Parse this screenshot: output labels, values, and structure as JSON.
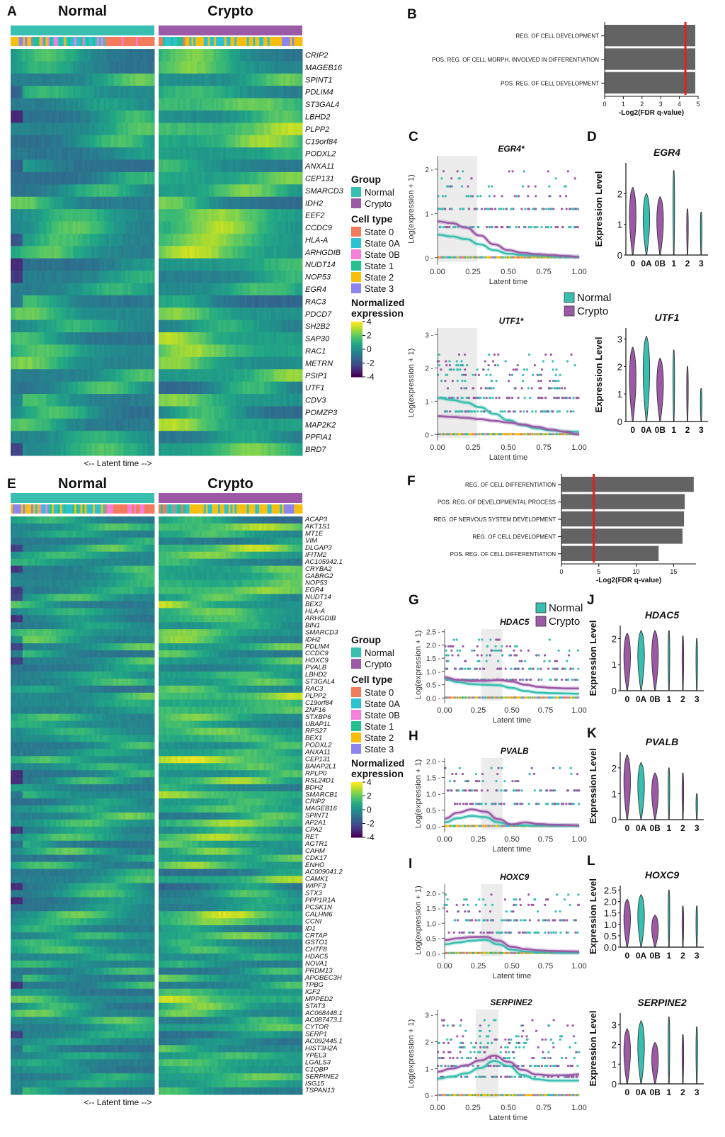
{
  "panels": {
    "A": {
      "letter": "A",
      "normal_label": "Normal",
      "crypto_label": "Crypto",
      "latent_label": "<-- Latent time -->",
      "genes": [
        "CRIP2",
        "MAGEB16",
        "SPINT1",
        "PDLIM4",
        "ST3GAL4",
        "LBHD2",
        "PLPP2",
        "C19orf84",
        "PODXL2",
        "ANXA11",
        "CEP131",
        "SMARCD3",
        "IDH2",
        "EEF2",
        "CCDC9",
        "HLA-A",
        "ARHGDIB",
        "NUDT14",
        "NOP53",
        "EGR4",
        "RAC3",
        "PDCD7",
        "SH2B2",
        "SAP30",
        "RAC1",
        "METRN",
        "PSIP1",
        "UTF1",
        "CDV3",
        "POMZP3",
        "MAP2K2",
        "PPFIA1",
        "BRD7"
      ]
    },
    "E": {
      "letter": "E",
      "normal_label": "Normal",
      "crypto_label": "Crypto",
      "latent_label": "<-- Latent time -->",
      "genes": [
        "ACAP3",
        "AKT1S1",
        "MT1E",
        "VIM",
        "DLGAP3",
        "IFITM2",
        "AC105942.1",
        "CRYBA2",
        "GABRG2",
        "NOP53",
        "EGR4",
        "NUDT14",
        "BEX2",
        "HLA-A",
        "ARHGDIB",
        "BIN1",
        "SMARCD3",
        "IDH2",
        "PDLIM4",
        "CCDC9",
        "HOXC9",
        "PVALB",
        "LBHD2",
        "ST3GAL4",
        "RAC3",
        "PLPP2",
        "C19orf84",
        "ZNF16",
        "STXBP6",
        "UBAP1L",
        "RPS27",
        "BEX1",
        "PODXL2",
        "ANXA11",
        "CEP131",
        "BAIAP2L1",
        "RPLP0",
        "RSL24D1",
        "BDH2",
        "SMARCB1",
        "CRIP2",
        "MAGEB16",
        "SPINT1",
        "AP2A1",
        "CPA2",
        "RET",
        "AGTR1",
        "CAHM",
        "CDK17",
        "ENHO",
        "AC009041.2",
        "CAMK1",
        "WIPF3",
        "STX3",
        "PPP1R1A",
        "PCSK1N",
        "CALHM6",
        "CCNI",
        "ID1",
        "CRTAP",
        "GSTO1",
        "CHTF8",
        "HDAC5",
        "NOVA1",
        "PRDM13",
        "APOBEC3H",
        "TPBG",
        "IGF2",
        "MPPED2",
        "STAT3",
        "AC068448.1",
        "AC087473.1",
        "CYTOR",
        "SERP1",
        "AC092445.1",
        "HIST3H2A",
        "YPEL3",
        "LGALS3",
        "C1QBP",
        "SERPINE2",
        "ISG15",
        "TSPAN13"
      ]
    },
    "B": {
      "letter": "B",
      "terms": [
        "REG. OF CELL DEVELOPMENT",
        "POS. REG. OF CELL MORPH. INVOLVED IN DIFFERENTIATION",
        "POS. REG. OF CELL DEVELOPMENT"
      ],
      "xlabel": "-Log2(FDR q-value)",
      "ticks": [
        "0",
        "1",
        "2",
        "3",
        "4",
        "5"
      ]
    },
    "F": {
      "letter": "F",
      "terms": [
        "REG. OF CELL DIFFERENTIATION",
        "POS. REG. OF DEVELOPMENTAL PROCESS",
        "REG. OF NERVOUS SYSTEM DEVELOPMENT",
        "REG. OF CELL DEVELOPMENT",
        "POS. REG. OF CELL DIFFERENTIATION"
      ],
      "xlabel": "-Log2(FDR q-value)",
      "ticks": [
        "0",
        "5",
        "10",
        "15"
      ]
    },
    "C": {
      "letter": "C"
    },
    "D": {
      "letter": "D"
    },
    "G": {
      "letter": "G"
    },
    "H": {
      "letter": "H"
    },
    "I": {
      "letter": "I"
    },
    "J": {
      "letter": "J"
    },
    "K": {
      "letter": "K"
    },
    "L": {
      "letter": "L"
    }
  },
  "legend": {
    "group_title": "Group",
    "group_items": [
      "Normal",
      "Crypto"
    ],
    "celltype_title": "Cell type",
    "celltype_items": [
      "State 0",
      "State 0A",
      "State 0B",
      "State 1",
      "State 2",
      "State 3"
    ],
    "expr_title_1": "Normalized",
    "expr_title_2": "expression",
    "expr_ticks": [
      "4",
      "2",
      "0",
      "-2",
      "-4"
    ]
  },
  "trend_legend": {
    "items": [
      "Normal",
      "Crypto"
    ]
  },
  "trend_axis": {
    "xlabel": "Latent time",
    "ylabel": "Log(expression + 1)",
    "xticks": [
      "0.00",
      "0.25",
      "0.50",
      "0.75",
      "1.00"
    ]
  },
  "violin_axis": {
    "ylabel": "Expression Level",
    "categories": [
      "0",
      "0A",
      "0B",
      "1",
      "2",
      "3"
    ]
  },
  "colors": {
    "normal": "#38bfb0",
    "crypto": "#9b59a6",
    "state0": "#f47a5d",
    "state0A": "#2ec1d1",
    "state0B": "#f47fd9",
    "state1": "#25c08f",
    "state2": "#f6bf10",
    "state3": "#8c84ef",
    "bar": "#636363",
    "threshold": "#e0211d"
  },
  "chart_data": [
    {
      "type": "bar",
      "panel": "B",
      "categories": [
        "REG. OF CELL DEVELOPMENT",
        "POS. REG. OF CELL MORPH. INVOLVED IN DIFFERENTIATION",
        "POS. REG. OF CELL DEVELOPMENT"
      ],
      "values": [
        4.85,
        4.85,
        4.85
      ],
      "threshold": 4.32,
      "xlim": [
        0,
        5
      ],
      "xlabel": "-Log2(FDR q-value)"
    },
    {
      "type": "bar",
      "panel": "F",
      "categories": [
        "REG. OF CELL DIFFERENTIATION",
        "POS. REG. OF DEVELOPMENTAL PROCESS",
        "REG. OF NERVOUS SYSTEM DEVELOPMENT",
        "REG. OF CELL DEVELOPMENT",
        "POS. REG. OF CELL DIFFERENTIATION"
      ],
      "values": [
        17.7,
        16.5,
        16.4,
        16.2,
        13.0
      ],
      "threshold": 4.32,
      "xlim": [
        0,
        18
      ],
      "xlabel": "-Log2(FDR q-value)"
    },
    {
      "type": "line",
      "panel": "C",
      "title": "EGR4*",
      "xlim": [
        0,
        1
      ],
      "ylim": [
        -0.1,
        2.3
      ],
      "yticks": [
        0,
        1,
        2
      ],
      "shade": [
        0.0,
        0.28
      ],
      "x": [
        0.0,
        0.1,
        0.2,
        0.3,
        0.4,
        0.5,
        0.6,
        0.7,
        0.8,
        0.9,
        1.0
      ],
      "series": [
        {
          "name": "Normal",
          "values": [
            0.52,
            0.48,
            0.42,
            0.3,
            0.17,
            0.09,
            0.06,
            0.05,
            0.04,
            0.03,
            0.02
          ]
        },
        {
          "name": "Crypto",
          "values": [
            0.82,
            0.78,
            0.68,
            0.5,
            0.3,
            0.17,
            0.11,
            0.08,
            0.06,
            0.04,
            0.02
          ]
        }
      ],
      "point_levels": [
        0,
        0.69,
        1.1,
        1.39,
        1.61,
        1.79,
        1.95
      ]
    },
    {
      "type": "line",
      "panel": "C2",
      "title": "UTF1*",
      "xlim": [
        0,
        1
      ],
      "ylim": [
        -0.1,
        3.2
      ],
      "yticks": [
        0,
        1,
        2,
        3
      ],
      "shade": [
        0.0,
        0.28
      ],
      "x": [
        0.0,
        0.1,
        0.2,
        0.3,
        0.4,
        0.5,
        0.6,
        0.7,
        0.8,
        0.9,
        1.0
      ],
      "series": [
        {
          "name": "Normal",
          "values": [
            1.1,
            1.04,
            0.96,
            0.82,
            0.62,
            0.43,
            0.28,
            0.18,
            0.12,
            0.09,
            0.08
          ]
        },
        {
          "name": "Crypto",
          "values": [
            0.55,
            0.53,
            0.5,
            0.46,
            0.41,
            0.36,
            0.3,
            0.23,
            0.15,
            0.08,
            0.0
          ]
        }
      ],
      "point_levels": [
        0,
        0.69,
        1.1,
        1.39,
        1.61,
        1.79,
        1.95,
        2.08,
        2.2,
        2.4
      ]
    },
    {
      "type": "line",
      "panel": "G",
      "title": "HDAC5",
      "xlim": [
        0,
        1
      ],
      "ylim": [
        -0.1,
        2.6
      ],
      "yticks": [
        0,
        0.5,
        1,
        1.5,
        2,
        2.5
      ],
      "shade": [
        0.27,
        0.43
      ],
      "x": [
        0.0,
        0.1,
        0.2,
        0.3,
        0.4,
        0.5,
        0.6,
        0.7,
        0.8,
        0.9,
        1.0
      ],
      "series": [
        {
          "name": "Normal",
          "values": [
            0.72,
            0.6,
            0.52,
            0.5,
            0.48,
            0.38,
            0.26,
            0.2,
            0.18,
            0.17,
            0.16
          ]
        },
        {
          "name": "Crypto",
          "values": [
            0.78,
            0.68,
            0.64,
            0.65,
            0.68,
            0.62,
            0.5,
            0.42,
            0.38,
            0.36,
            0.36
          ]
        }
      ],
      "point_levels": [
        0,
        0.69,
        1.1,
        1.39,
        1.61,
        1.79,
        1.95,
        2.2
      ]
    },
    {
      "type": "line",
      "panel": "H",
      "title": "PVALB",
      "xlim": [
        0,
        1
      ],
      "ylim": [
        -0.1,
        2.1
      ],
      "yticks": [
        0,
        0.5,
        1,
        1.5,
        2
      ],
      "shade": [
        0.27,
        0.43
      ],
      "x": [
        0.0,
        0.1,
        0.2,
        0.3,
        0.4,
        0.5,
        0.6,
        0.7,
        0.8,
        0.9,
        1.0
      ],
      "series": [
        {
          "name": "Normal",
          "values": [
            0.12,
            0.25,
            0.32,
            0.28,
            0.12,
            0.04,
            0.03,
            0.02,
            0.02,
            0.02,
            0.02
          ]
        },
        {
          "name": "Crypto",
          "values": [
            0.24,
            0.42,
            0.52,
            0.45,
            0.22,
            0.06,
            0.12,
            0.07,
            0.05,
            0.04,
            0.03
          ]
        }
      ],
      "point_levels": [
        0,
        0.69,
        1.1,
        1.39,
        1.61,
        1.79
      ]
    },
    {
      "type": "line",
      "panel": "I",
      "title": "HOXC9",
      "xlim": [
        0,
        1
      ],
      "ylim": [
        -0.1,
        2.3
      ],
      "yticks": [
        0,
        0.5,
        1,
        1.5,
        2
      ],
      "shade": [
        0.27,
        0.43
      ],
      "x": [
        0.0,
        0.1,
        0.2,
        0.3,
        0.4,
        0.5,
        0.6,
        0.7,
        0.8,
        0.9,
        1.0
      ],
      "series": [
        {
          "name": "Normal",
          "values": [
            0.3,
            0.36,
            0.42,
            0.45,
            0.3,
            0.12,
            0.06,
            0.04,
            0.03,
            0.02,
            0.02
          ]
        },
        {
          "name": "Crypto",
          "values": [
            0.44,
            0.5,
            0.54,
            0.55,
            0.42,
            0.22,
            0.14,
            0.1,
            0.08,
            0.07,
            0.06
          ]
        }
      ],
      "point_levels": [
        0,
        0.69,
        1.1,
        1.39,
        1.61,
        1.79,
        1.95
      ]
    },
    {
      "type": "line",
      "panel": "I2",
      "title": "SERPINE2",
      "xlim": [
        0,
        1
      ],
      "ylim": [
        -0.1,
        3.2
      ],
      "yticks": [
        0,
        1,
        2,
        3
      ],
      "shade": [
        0.27,
        0.43
      ],
      "x": [
        0.0,
        0.1,
        0.2,
        0.3,
        0.4,
        0.5,
        0.6,
        0.7,
        0.8,
        0.9,
        1.0
      ],
      "series": [
        {
          "name": "Normal",
          "values": [
            0.62,
            0.7,
            0.82,
            1.02,
            1.28,
            1.1,
            0.76,
            0.6,
            0.55,
            0.55,
            0.55
          ]
        },
        {
          "name": "Crypto",
          "values": [
            0.88,
            1.0,
            1.12,
            1.3,
            1.48,
            1.25,
            0.95,
            0.78,
            0.74,
            0.75,
            0.78
          ]
        }
      ],
      "point_levels": [
        0,
        0.69,
        1.1,
        1.39,
        1.61,
        1.79,
        1.95,
        2.08,
        2.2,
        2.4,
        2.6,
        2.8
      ]
    },
    {
      "type": "violin",
      "panel": "D",
      "title": "EGR4",
      "ylim": [
        0,
        3
      ],
      "yticks": [
        0,
        1,
        2
      ],
      "max": [
        2.2,
        2.0,
        1.9,
        2.75,
        1.5,
        1.4
      ]
    },
    {
      "type": "violin",
      "panel": "D2",
      "title": "UTF1",
      "ylim": [
        0,
        3.4
      ],
      "yticks": [
        0,
        1,
        2,
        3
      ],
      "max": [
        2.7,
        3.1,
        2.3,
        2.6,
        2.0,
        1.2
      ]
    },
    {
      "type": "violin",
      "panel": "J",
      "title": "HDAC5",
      "ylim": [
        0,
        2.5
      ],
      "yticks": [
        0,
        1,
        2
      ],
      "max": [
        2.2,
        2.3,
        2.3,
        2.3,
        2.1,
        2.0
      ]
    },
    {
      "type": "violin",
      "panel": "K",
      "title": "PVALB",
      "ylim": [
        0,
        2.6
      ],
      "yticks": [
        0,
        1,
        2
      ],
      "max": [
        2.5,
        2.2,
        1.8,
        2.0,
        1.8,
        1.0
      ]
    },
    {
      "type": "violin",
      "panel": "L",
      "title": "HOXC9",
      "ylim": [
        0,
        2.7
      ],
      "yticks": [
        0,
        0.5,
        1,
        1.5,
        2,
        2.5
      ],
      "max": [
        2.1,
        2.3,
        1.4,
        2.5,
        1.8,
        1.8
      ]
    },
    {
      "type": "violin",
      "panel": "L2",
      "title": "SERPINE2",
      "ylim": [
        0,
        3.6
      ],
      "yticks": [
        0,
        1,
        2,
        3
      ],
      "max": [
        2.8,
        3.2,
        2.1,
        3.4,
        2.5,
        2.9
      ]
    }
  ]
}
